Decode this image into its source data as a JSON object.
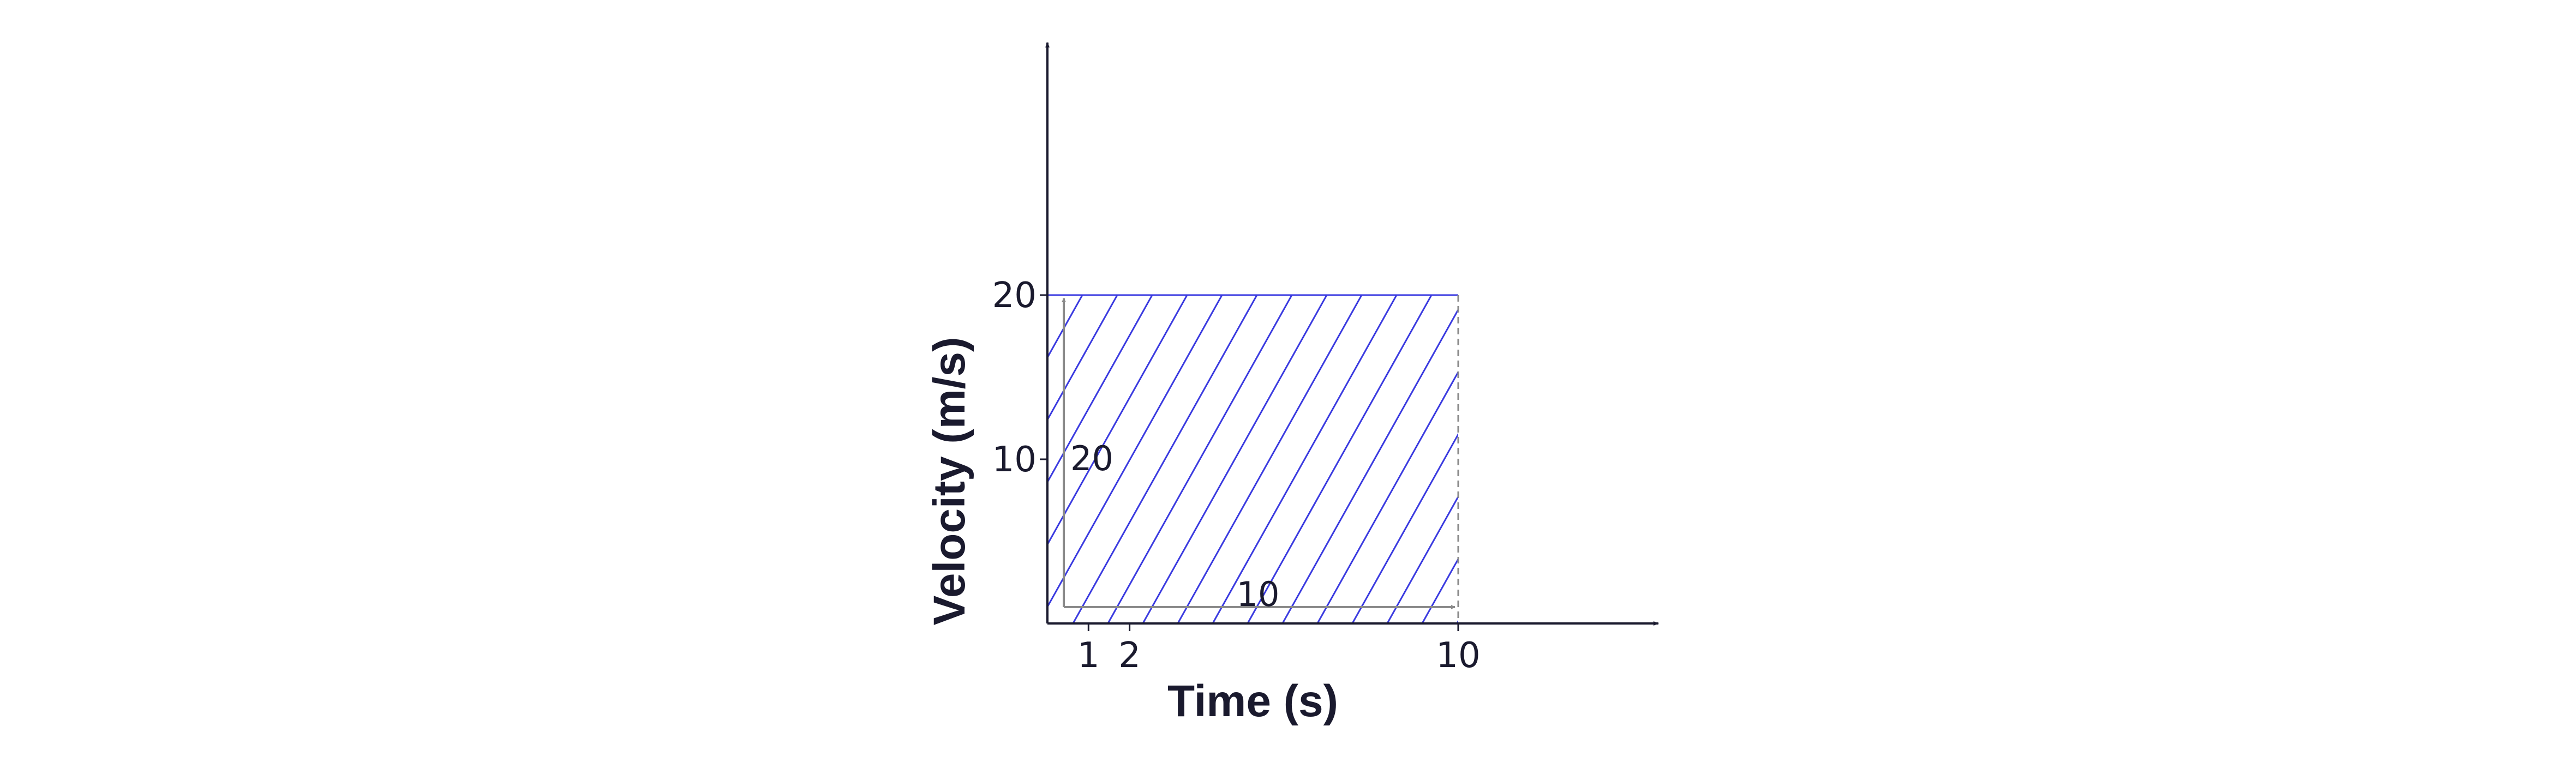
{
  "chart_data": {
    "type": "area",
    "xlabel": "Time (s)",
    "ylabel": "Velocity (m/s)",
    "x_ticks": [
      1,
      2,
      10
    ],
    "y_ticks": [
      10,
      20
    ],
    "series": [
      {
        "x": [
          0,
          10
        ],
        "y": [
          20,
          20
        ]
      }
    ],
    "shaded_region": {
      "x": [
        0,
        10
      ],
      "y": [
        0,
        20
      ],
      "fill": "hatched"
    },
    "annotations": [
      {
        "text": "20",
        "quantity": "height",
        "from": [
          0,
          0
        ],
        "to": [
          0,
          20
        ]
      },
      {
        "text": "10",
        "quantity": "width",
        "from": [
          0,
          0
        ],
        "to": [
          10,
          0
        ]
      }
    ],
    "grid": false,
    "colors": {
      "hatch": "#3a3ae0",
      "axis": "#1a1a2e",
      "dimension": "#8a8a8a"
    }
  }
}
